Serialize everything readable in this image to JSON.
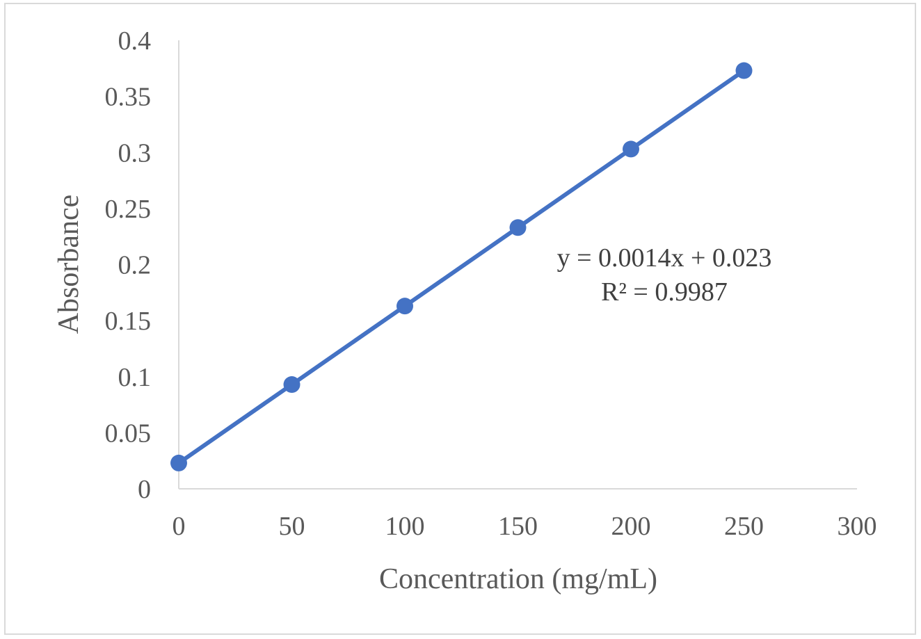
{
  "chart_data": {
    "type": "scatter",
    "title": "",
    "xlabel": "Concentration (mg/mL)",
    "ylabel": "Absorbance",
    "xlim": [
      0,
      300
    ],
    "ylim": [
      0,
      0.4
    ],
    "x_ticks": [
      0,
      50,
      100,
      150,
      200,
      250,
      300
    ],
    "y_ticks": [
      0,
      0.05,
      0.1,
      0.15,
      0.2,
      0.25,
      0.3,
      0.35,
      0.4
    ],
    "x_tick_labels": [
      "0",
      "50",
      "100",
      "150",
      "200",
      "250",
      "300"
    ],
    "y_tick_labels": [
      "0",
      "0.05",
      "0.1",
      "0.15",
      "0.2",
      "0.25",
      "0.3",
      "0.35",
      "0.4"
    ],
    "grid": false,
    "series": [
      {
        "x": [
          0,
          50,
          100,
          150,
          200,
          250
        ],
        "y": [
          0.023,
          0.093,
          0.163,
          0.233,
          0.303,
          0.373
        ],
        "color": "#4472c4"
      }
    ],
    "trendline": {
      "type": "linear",
      "slope": 0.0014,
      "intercept": 0.023,
      "equation": "y = 0.0014x + 0.023",
      "r_squared": "R² = 0.9987"
    },
    "axis_color": "#d9d9d9",
    "text_color": "#595959"
  }
}
